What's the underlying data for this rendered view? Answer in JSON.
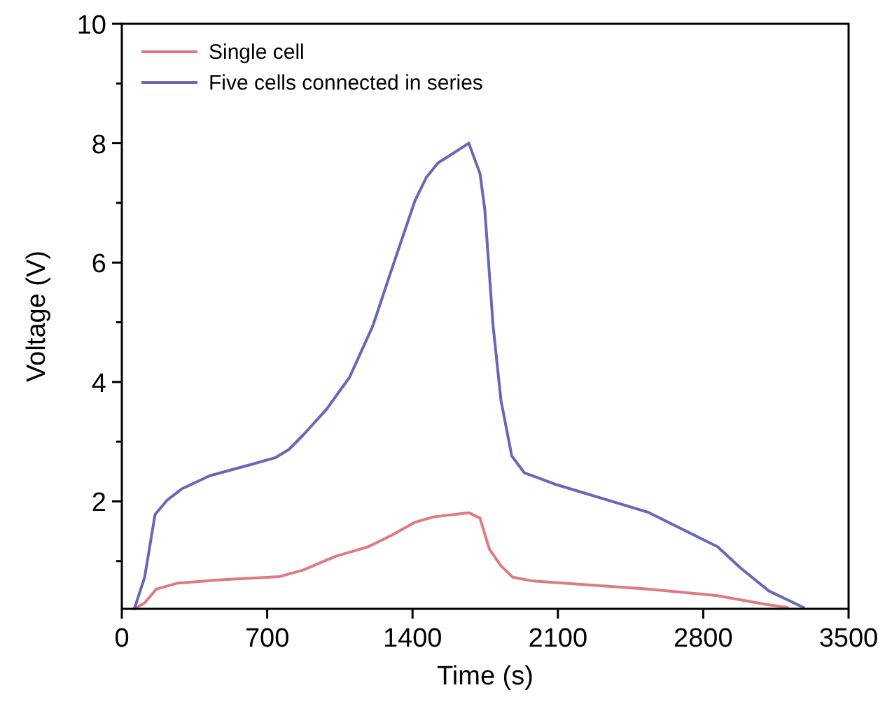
{
  "chart_data": {
    "type": "line",
    "xlabel": "Time (s)",
    "ylabel": "Voltage (V)",
    "xlim": [
      0,
      3500
    ],
    "xticks": [
      0,
      700,
      1400,
      2100,
      2800,
      3500
    ],
    "ylim": [
      0.2,
      10
    ],
    "yticks": [
      {
        "value": 1,
        "label": null
      },
      2,
      {
        "value": 3,
        "label": null
      },
      4,
      {
        "value": 5,
        "label": null
      },
      6,
      {
        "value": 7,
        "label": null
      },
      8,
      {
        "value": 9,
        "label": null
      },
      10
    ],
    "grid": false,
    "legend": "top left",
    "marker": "none",
    "line_style": "solid",
    "series": [
      {
        "name": "Single cell",
        "color": "#e07a82",
        "x": [
          60,
          110,
          166,
          267,
          491,
          760,
          873,
          1030,
          1187,
          1299,
          1411,
          1501,
          1671,
          1725,
          1770,
          1826,
          1882,
          1972,
          2533,
          2869,
          3094,
          3206
        ],
        "values": [
          0.2,
          0.3,
          0.53,
          0.63,
          0.69,
          0.74,
          0.85,
          1.08,
          1.24,
          1.43,
          1.65,
          1.74,
          1.81,
          1.72,
          1.2,
          0.92,
          0.73,
          0.67,
          0.53,
          0.42,
          0.28,
          0.22
        ]
      },
      {
        "name": "Five cells connected in series",
        "color": "#6a66b6",
        "x": [
          60,
          110,
          160,
          218,
          289,
          424,
          604,
          738,
          805,
          873,
          985,
          1097,
          1209,
          1299,
          1411,
          1467,
          1523,
          1591,
          1671,
          1725,
          1748,
          1788,
          1826,
          1878,
          1938,
          2084,
          2533,
          2869,
          2981,
          3116,
          3284
        ],
        "values": [
          0.2,
          0.73,
          1.78,
          2.02,
          2.21,
          2.43,
          2.6,
          2.73,
          2.87,
          3.11,
          3.54,
          4.08,
          4.94,
          5.88,
          7.03,
          7.43,
          7.67,
          7.82,
          8.0,
          7.49,
          6.89,
          4.94,
          3.69,
          2.76,
          2.48,
          2.29,
          1.82,
          1.24,
          0.88,
          0.5,
          0.22
        ]
      }
    ]
  }
}
